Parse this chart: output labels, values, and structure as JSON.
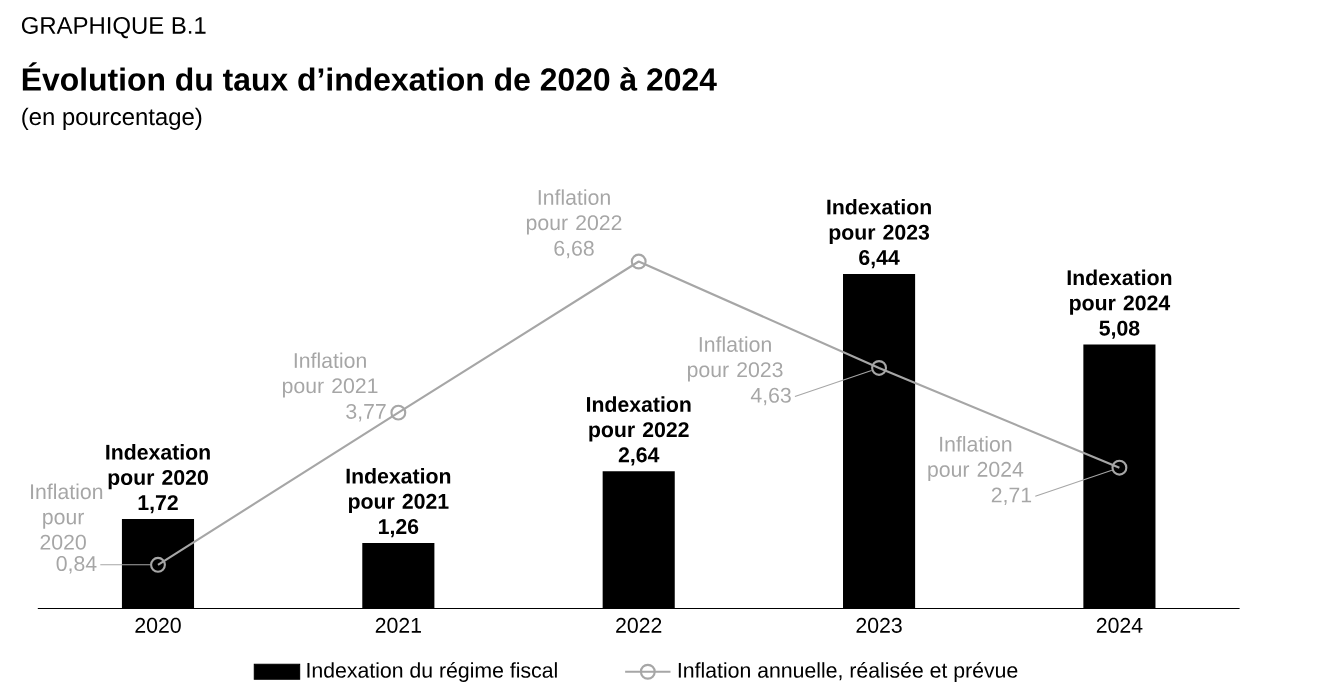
{
  "chart_data": {
    "type": "bar",
    "title": "Évolution du taux d’indexation de 2020 à 2024",
    "subtitle": "(en pourcentage)",
    "categories": [
      "2020",
      "2021",
      "2022",
      "2023",
      "2024"
    ],
    "series": [
      {
        "name": "Indexation du régime fiscal",
        "color": "#000000",
        "values": [
          1.72,
          1.26,
          2.64,
          6.44,
          5.08
        ],
        "value_labels": [
          "1,72",
          "1,26",
          "2,64",
          "6,44",
          "5,08"
        ]
      },
      {
        "name": "Inflation annuelle, réalisée et prévue",
        "type": "line",
        "color": "#a6a6a6",
        "marker": "circle",
        "values": [
          0.84,
          3.77,
          6.68,
          4.63,
          2.71
        ],
        "value_labels": [
          "0,84",
          "3,77",
          "6,68",
          "4,63",
          "2,71"
        ]
      }
    ],
    "legend": "bottom",
    "annotations": [
      "GRAPHIQUE B.1",
      {
        "text": "Indexation pour 2020",
        "x": "2020",
        "y": 1.72
      },
      {
        "text": "Indexation pour 2021",
        "x": "2021",
        "y": 1.26
      },
      {
        "text": "Indexation pour 2022",
        "x": "2022",
        "y": 2.64
      },
      {
        "text": "Indexation pour 2023",
        "x": "2023",
        "y": 6.44
      },
      {
        "text": "Indexation pour 2024",
        "x": "2024",
        "y": 5.08
      },
      {
        "text": "Inflation pour 2020",
        "x": "2020",
        "y": 0.84
      },
      {
        "text": "Inflation pour 2021",
        "x": "2021",
        "y": 3.77
      },
      {
        "text": "Inflation pour 2022",
        "x": "2022",
        "y": 6.68
      },
      {
        "text": "Inflation pour 2023",
        "x": "2023",
        "y": 4.63
      },
      {
        "text": "Inflation pour 2024",
        "x": "2024",
        "y": 2.71
      }
    ]
  }
}
